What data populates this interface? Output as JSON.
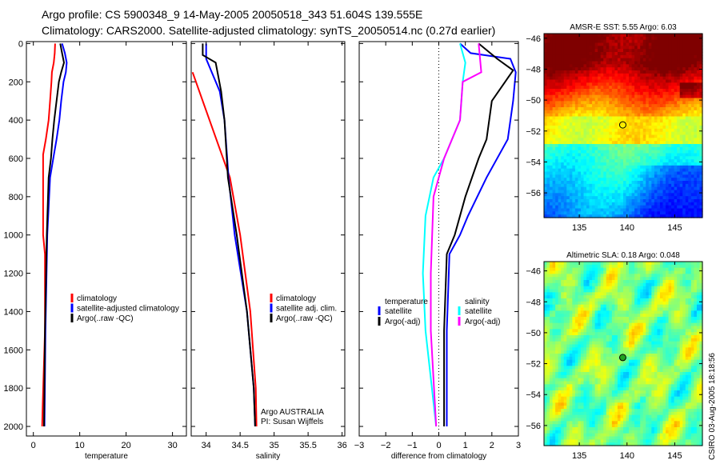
{
  "header": {
    "line1": "Argo profile: CS 5900348_9 14-May-2005 20050518_343 51.604S 139.555E",
    "line2": "Climatology: CARS2000. Satellite-adjusted climatology: synTS_20050514.nc (0.27d earlier)"
  },
  "side_label": "CSIRO 03-Aug-2005 18:18:56",
  "chart_data": [
    {
      "type": "line",
      "id": "temperature",
      "xlabel": "temperature",
      "ylabel": "",
      "xlim": [
        -1.5,
        33
      ],
      "ylim": [
        2050,
        -10
      ],
      "xticks": [
        0,
        10,
        20,
        30
      ],
      "yticks": [
        0,
        200,
        400,
        600,
        800,
        1000,
        1200,
        1400,
        1600,
        1800,
        2000
      ],
      "legend": {
        "placement": "right-middle",
        "entries": [
          "climatology",
          "satellite-adjusted climatology",
          "Argo(..raw -QC)"
        ]
      },
      "series": [
        {
          "name": "climatology",
          "color": "#ff0000",
          "depth": [
            0,
            50,
            100,
            150,
            200,
            300,
            400,
            500,
            580,
            700,
            1000,
            1100,
            1500,
            1900,
            2000
          ],
          "values": [
            4.7,
            4.6,
            4.4,
            4.0,
            3.9,
            3.6,
            3.3,
            2.7,
            2.1,
            2.1,
            2.1,
            2.5,
            2.5,
            2.0,
            1.9
          ]
        },
        {
          "name": "satellite-adjusted climatology",
          "color": "#0000ff",
          "depth": [
            0,
            50,
            100,
            150,
            200,
            300,
            400,
            500,
            600,
            700,
            1000,
            1500,
            2000
          ],
          "values": [
            6.2,
            6.8,
            7.2,
            7.0,
            6.5,
            6.0,
            5.6,
            5.0,
            4.3,
            3.6,
            3.0,
            2.6,
            2.4
          ]
        },
        {
          "name": "Argo(..raw -QC)",
          "color": "#000000",
          "depth": [
            0,
            50,
            100,
            150,
            200,
            300,
            400,
            500,
            600,
            700,
            1000,
            1500,
            2000
          ],
          "values": [
            5.8,
            6.2,
            6.6,
            6.0,
            5.5,
            5.0,
            4.5,
            4.1,
            3.8,
            3.3,
            2.9,
            2.5,
            2.3
          ]
        }
      ]
    },
    {
      "type": "line",
      "id": "salinity",
      "xlabel": "salinity",
      "xlim": [
        33.78,
        36.04
      ],
      "ylim": [
        2050,
        -10
      ],
      "xticks": [
        34,
        34.5,
        35,
        35.5,
        36
      ],
      "legend": {
        "placement": "right-middle",
        "entries": [
          "climatology",
          "satellite adj. clim.",
          "Argo(..raw -QC)"
        ]
      },
      "annotation": [
        "Argo AUSTRALIA",
        "PI: Susan Wijffels"
      ],
      "series": [
        {
          "name": "climatology",
          "color": "#ff0000",
          "depth": [
            150,
            300,
            500,
            700,
            1000,
            1400,
            1800,
            2000
          ],
          "values": [
            33.8,
            33.95,
            34.15,
            34.35,
            34.5,
            34.65,
            34.73,
            34.74
          ]
        },
        {
          "name": "satellite adj. clim.",
          "color": "#0000ff",
          "depth": [
            0,
            80,
            250,
            400,
            700,
            1000,
            1400,
            1800,
            2000
          ],
          "values": [
            34.0,
            34.0,
            34.2,
            34.27,
            34.33,
            34.42,
            34.6,
            34.7,
            34.72
          ]
        },
        {
          "name": "Argo(..raw -QC)",
          "color": "#000000",
          "depth": [
            0,
            60,
            100,
            250,
            400,
            700,
            1000,
            1400,
            1800,
            2000
          ],
          "values": [
            33.95,
            33.95,
            34.14,
            34.22,
            34.27,
            34.32,
            34.45,
            34.6,
            34.7,
            34.72
          ]
        }
      ]
    },
    {
      "type": "line",
      "id": "difference",
      "xlabel": "difference from climatology",
      "xlim": [
        -3,
        3
      ],
      "ylim": [
        2050,
        -10
      ],
      "xticks": [
        -3,
        -2,
        -1,
        0,
        1,
        2,
        3
      ],
      "legend": {
        "placement": "middle",
        "temperature_title": "temperature",
        "salinity_title": "salinity",
        "entries": [
          "satellite",
          "Argo(-adj)",
          "satellite",
          "Argo(-adj)"
        ]
      },
      "series": [
        {
          "name": "temperature satellite",
          "color": "#0000ff",
          "depth": [
            0,
            50,
            80,
            150,
            300,
            500,
            700,
            900,
            1000,
            1100,
            1500,
            2000
          ],
          "values": [
            0.8,
            1.2,
            2.7,
            2.9,
            2.8,
            2.6,
            1.8,
            1.1,
            0.8,
            0.4,
            0.3,
            0.3
          ]
        },
        {
          "name": "temperature Argo(-adj)",
          "color": "#000000",
          "depth": [
            0,
            80,
            140,
            200,
            300,
            500,
            600,
            800,
            1000,
            1100,
            1500,
            2000
          ],
          "values": [
            1.5,
            2.2,
            2.8,
            2.5,
            2.0,
            1.8,
            1.5,
            1.0,
            0.6,
            0.3,
            0.2,
            0.2
          ]
        },
        {
          "name": "salinity satellite",
          "color": "#00ffff",
          "depth": [
            0,
            100,
            200,
            400,
            600,
            700,
            900,
            1200,
            1500,
            2000
          ],
          "values": [
            0.8,
            1.0,
            0.9,
            0.8,
            0.2,
            -0.2,
            -0.5,
            -0.6,
            -0.5,
            -0.1
          ]
        },
        {
          "name": "salinity Argo(-adj)",
          "color": "#ff00ff",
          "depth": [
            0,
            150,
            200,
            400,
            600,
            800,
            1200,
            1500,
            2000
          ],
          "values": [
            1.5,
            1.6,
            0.9,
            0.8,
            0.2,
            -0.2,
            -0.3,
            -0.3,
            -0.1
          ]
        }
      ]
    },
    {
      "type": "heatmap",
      "id": "sst-map",
      "title": "AMSR-E SST: 5.55 Argo: 6.03",
      "xlim": [
        131.3,
        147.9
      ],
      "ylim": [
        -57.6,
        -45.7
      ],
      "xticks": [
        135,
        140,
        145
      ],
      "yticks": [
        -46,
        -48,
        -50,
        -52,
        -54,
        -56
      ],
      "marker": {
        "lon": 139.555,
        "lat": -51.604
      }
    },
    {
      "type": "heatmap",
      "id": "sla-map",
      "title": "Altimetric SLA: 0.18 Argo: 0.048",
      "xlim": [
        131.3,
        147.9
      ],
      "ylim": [
        -57.3,
        -45.4
      ],
      "xticks": [
        135,
        140,
        145
      ],
      "yticks": [
        -46,
        -48,
        -50,
        -52,
        -54,
        -56
      ],
      "marker": {
        "lon": 139.555,
        "lat": -51.604
      }
    }
  ]
}
